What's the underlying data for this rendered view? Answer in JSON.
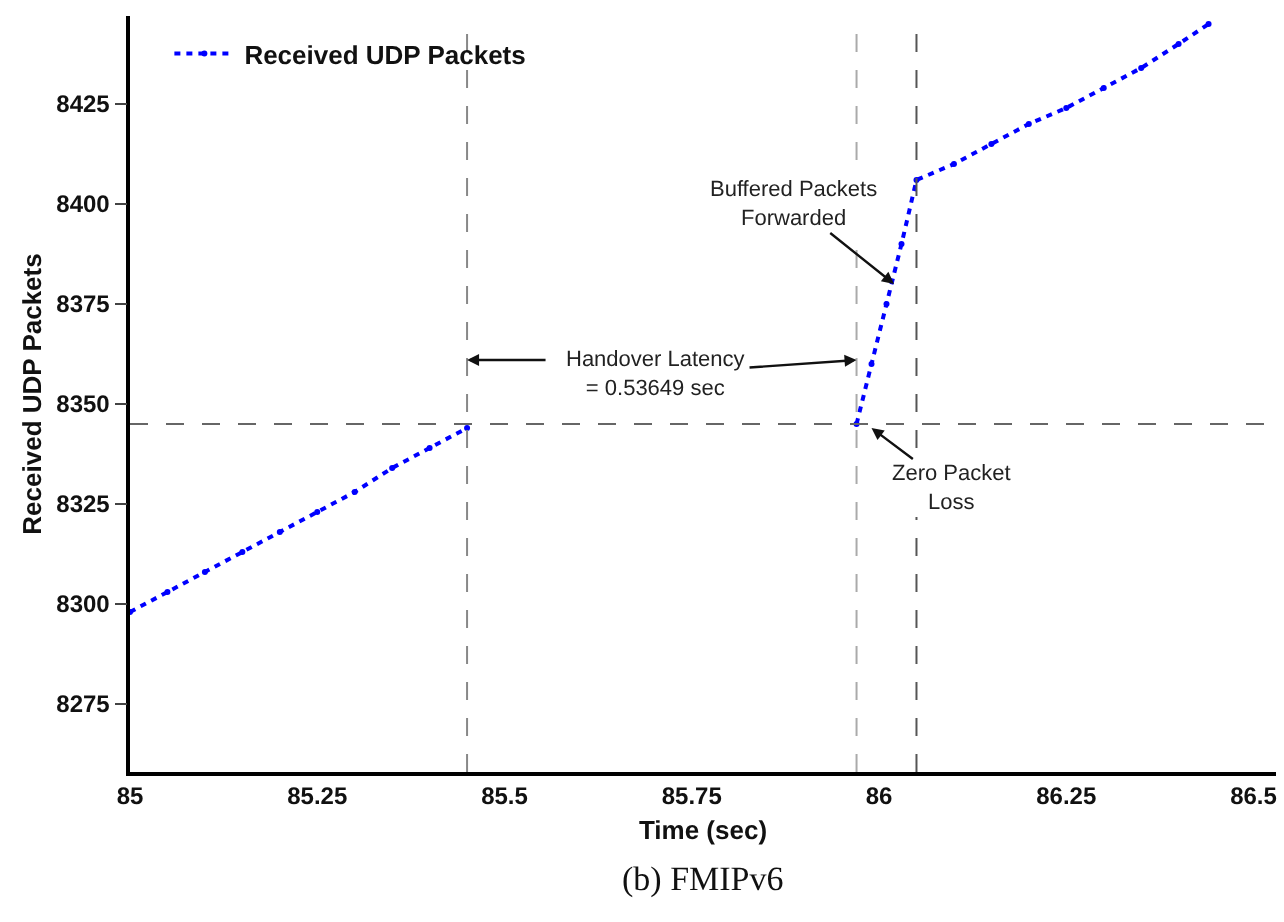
{
  "chart_data": {
    "type": "line",
    "xlabel": "Time (sec)",
    "ylabel": "Received UDP Packets",
    "x": [
      85.0,
      85.05,
      85.1,
      85.15,
      85.2,
      85.25,
      85.3,
      85.35,
      85.4,
      85.45,
      85.7,
      85.97,
      85.99,
      86.01,
      86.03,
      86.05,
      86.1,
      86.15,
      86.2,
      86.25,
      86.3,
      86.35,
      86.4,
      86.44
    ],
    "series": [
      {
        "name": "Received UDP Packets",
        "color": "#0000ff",
        "values": [
          8298,
          8303,
          8308,
          8313,
          8318,
          8323,
          8328,
          8334,
          8339,
          8344,
          null,
          8345,
          8360,
          8375,
          8390,
          8406,
          8410,
          8415,
          8420,
          8424,
          8429,
          8434,
          8440,
          8445
        ]
      }
    ],
    "xlim": [
      85,
      86.53
    ],
    "xticks": [
      85,
      85.25,
      85.5,
      85.75,
      86,
      86.25,
      86.5
    ],
    "ylim": [
      8258,
      8447
    ],
    "yticks": [
      8275,
      8300,
      8325,
      8350,
      8375,
      8400,
      8425
    ],
    "ref_lines": [
      {
        "axis": "y",
        "value": 8345,
        "color": "#666666",
        "line_style": "dashed"
      },
      {
        "axis": "x",
        "value": 85.45,
        "color": "#888888",
        "line_style": "dashed"
      },
      {
        "axis": "x",
        "value": 85.97,
        "color": "#aaaaaa",
        "line_style": "dashed"
      },
      {
        "axis": "x",
        "value": 86.05,
        "color": "#555555",
        "line_style": "dashed"
      }
    ],
    "annotations": [
      {
        "text": "Handover Latency\n= 0.53649 sec",
        "x": 85.97,
        "y": 8361
      },
      {
        "text": "Buffered Packets\nForwarded",
        "x": 86.02,
        "y": 8380
      },
      {
        "text": "Zero Packet\nLoss",
        "x": 85.99,
        "y": 8344
      },
      "(b) FMIPv6"
    ],
    "legend": "top left",
    "marker": "circle",
    "line_style": "dotted"
  }
}
